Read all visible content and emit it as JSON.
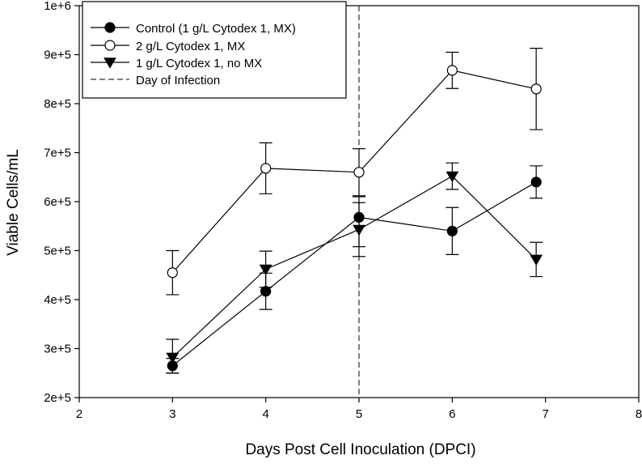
{
  "chart_data": {
    "type": "line",
    "title": "",
    "xlabel": "Days Post Cell Inoculation (DPCI)",
    "ylabel": "Viable Cells/mL",
    "xlim": [
      2,
      8
    ],
    "ylim": [
      200000,
      1000000
    ],
    "x_ticks": [
      2,
      3,
      4,
      5,
      6,
      7,
      8
    ],
    "x_tick_labels": [
      "2",
      "3",
      "4",
      "5",
      "6",
      "7",
      "8"
    ],
    "y_ticks": [
      200000,
      300000,
      400000,
      500000,
      600000,
      700000,
      800000,
      900000,
      1000000
    ],
    "y_tick_labels": [
      "2e+5",
      "3e+5",
      "4e+5",
      "5e+5",
      "6e+5",
      "7e+5",
      "8e+5",
      "9e+5",
      "1e+6"
    ],
    "grid": false,
    "legend_position": "top-left",
    "series": [
      {
        "name": "Control (1 g/L Cytodex 1, MX)",
        "marker": "filled-circle",
        "color": "#000000",
        "x": [
          3,
          4,
          5,
          6,
          6.9
        ],
        "y": [
          265000,
          417000,
          568000,
          540000,
          640000
        ],
        "err_low": [
          15000,
          37000,
          60000,
          48000,
          33000
        ],
        "err_high": [
          15000,
          37000,
          42000,
          48000,
          33000
        ]
      },
      {
        "name": "2 g/L Cytodex 1, MX",
        "marker": "open-circle",
        "color": "#000000",
        "x": [
          3,
          4,
          5,
          6,
          6.9
        ],
        "y": [
          455000,
          668000,
          660000,
          868000,
          830000
        ],
        "err_low": [
          45000,
          52000,
          48000,
          37000,
          83000
        ],
        "err_high": [
          45000,
          52000,
          48000,
          37000,
          83000
        ]
      },
      {
        "name": "1 g/L Cytodex 1, no MX",
        "marker": "filled-triangle-down",
        "color": "#000000",
        "x": [
          3,
          4,
          5,
          6,
          6.9
        ],
        "y": [
          282000,
          462000,
          543000,
          652000,
          482000
        ],
        "err_low": [
          32000,
          37000,
          55000,
          27000,
          35000
        ],
        "err_high": [
          37000,
          37000,
          55000,
          27000,
          35000
        ]
      }
    ],
    "vertical_lines": [
      {
        "name": "Day of Infection",
        "x": 5,
        "style": "dashed",
        "color": "#000000"
      }
    ]
  }
}
